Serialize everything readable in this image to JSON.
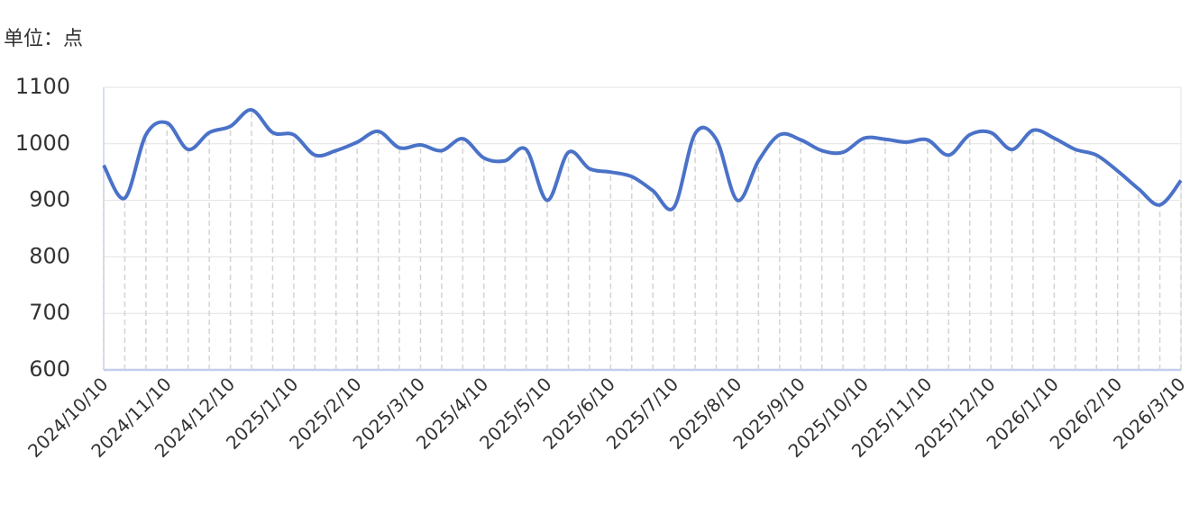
{
  "chart_data": {
    "type": "line",
    "unit_label": "单位：点",
    "categories": [
      "2024/10/10",
      null,
      null,
      "2024/11/10",
      null,
      null,
      "2024/12/10",
      null,
      null,
      "2025/1/10",
      null,
      null,
      "2025/2/10",
      null,
      null,
      "2025/3/10",
      null,
      null,
      "2025/4/10",
      null,
      null,
      "2025/5/10",
      null,
      null,
      "2025/6/10",
      null,
      null,
      "2025/7/10",
      null,
      null,
      "2025/8/10",
      null,
      null,
      "2025/9/10",
      null,
      null,
      "2025/10/10",
      null,
      null,
      "2025/11/10",
      null,
      null,
      "2025/12/10",
      null,
      null,
      "2026/1/10",
      null,
      null,
      "2026/2/10",
      null,
      null,
      "2026/3/10"
    ],
    "series": [
      {
        "name": null,
        "color": "#4a72c8",
        "values": [
          962,
          904,
          1016,
          1037,
          990,
          1020,
          1031,
          1060,
          1020,
          1016,
          980,
          988,
          1003,
          1022,
          993,
          998,
          988,
          1009,
          975,
          970,
          990,
          900,
          985,
          956,
          950,
          942,
          917,
          888,
          1018,
          1008,
          900,
          970,
          1016,
          1007,
          988,
          985,
          1010,
          1008,
          1003,
          1007,
          980,
          1016,
          1020,
          990,
          1024,
          1010,
          990,
          980,
          952,
          920,
          892,
          935
        ]
      }
    ],
    "ylim": [
      600,
      1100
    ],
    "yticks": [
      600,
      700,
      800,
      900,
      1000,
      1100
    ],
    "grid": true
  }
}
